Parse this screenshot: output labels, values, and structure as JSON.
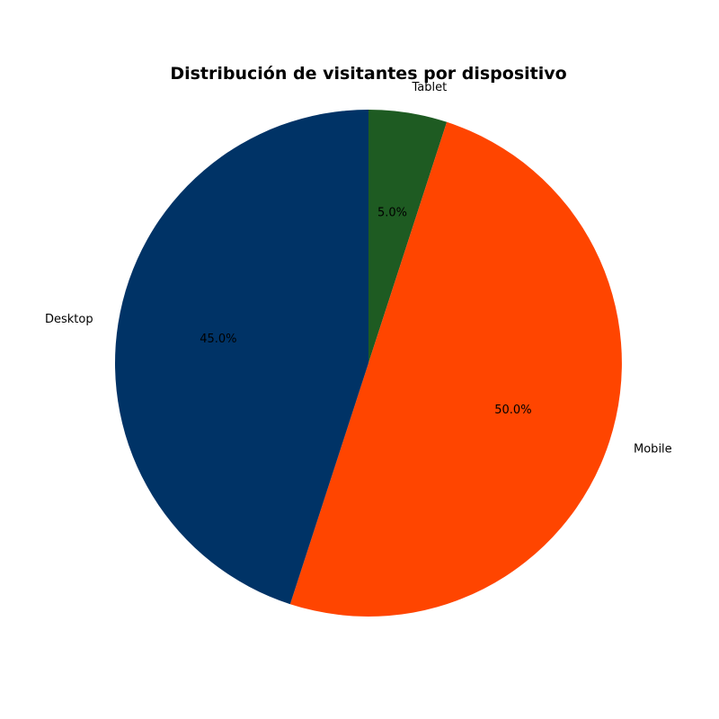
{
  "chart_data": {
    "type": "pie",
    "title": "Distribución de visitantes por dispositivo",
    "categories": [
      "Tablet",
      "Mobile",
      "Desktop"
    ],
    "values": [
      5.0,
      50.0,
      45.0
    ],
    "percent_labels": [
      "5.0%",
      "50.0%",
      "45.0%"
    ],
    "colors": [
      "#1e5b22",
      "#ff4500",
      "#003366"
    ],
    "start_angle_deg": 90,
    "direction": "clockwise",
    "legend": "none"
  }
}
